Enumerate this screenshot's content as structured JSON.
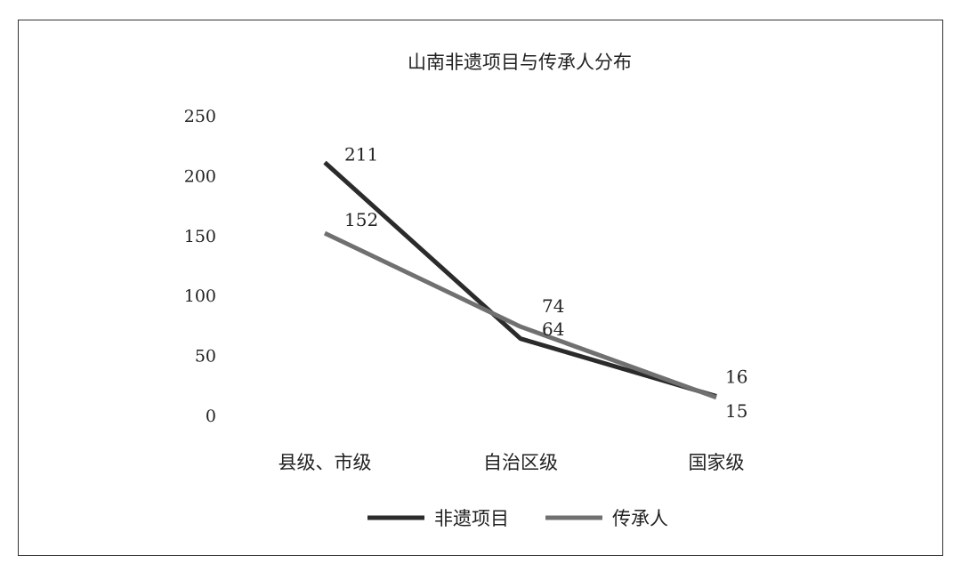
{
  "chart_data": {
    "type": "line",
    "title": "山南非遗项目与传承人分布",
    "categories": [
      "县级、市级",
      "自治区级",
      "国家级"
    ],
    "series": [
      {
        "name": "非遗项目",
        "color": "#2b2b2b",
        "values": [
          211,
          64,
          16
        ]
      },
      {
        "name": "传承人",
        "color": "#707070",
        "values": [
          152,
          74,
          15
        ]
      }
    ],
    "yticks": [
      0,
      50,
      100,
      150,
      200,
      250
    ],
    "ylim": [
      0,
      250
    ],
    "grid": false,
    "legend": "bottom"
  }
}
